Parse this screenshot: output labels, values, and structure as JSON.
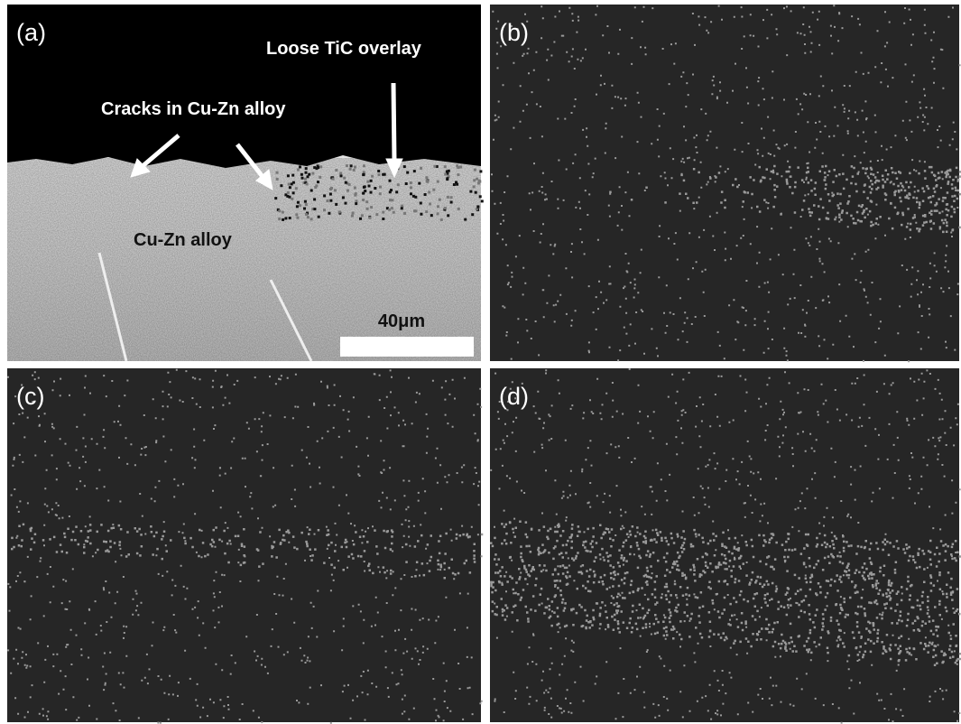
{
  "panels": [
    {
      "label": "(a)"
    },
    {
      "label": "(b)"
    },
    {
      "label": "(c)"
    },
    {
      "label": "(d)"
    }
  ],
  "annotations": {
    "overlay": "Loose TiC overlay",
    "cracks": "Cracks in Cu-Zn alloy",
    "alloy": "Cu-Zn alloy",
    "scale_bar": "40μm"
  }
}
